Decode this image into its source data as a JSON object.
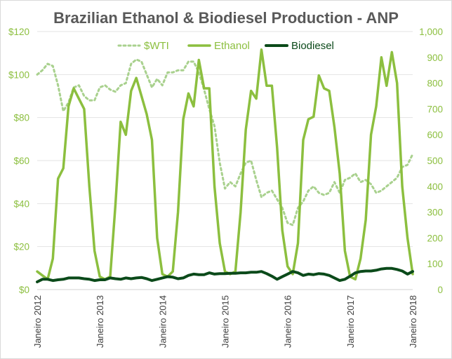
{
  "chart_data": {
    "type": "line",
    "title": "Brazilian Ethanol & Biodiesel Production - ANP",
    "colors": {
      "wti": "#a9d18e",
      "ethanol": "#8cbf3f",
      "biodiesel": "#0b4a1a",
      "axis_labels": "#8cbf3f",
      "title": "#595959"
    },
    "legend_position": "top",
    "grid": true,
    "y_left": {
      "min": 0,
      "max": 120,
      "ticks": [
        "$0",
        "$20",
        "$40",
        "$60",
        "$80",
        "$100",
        "$120"
      ],
      "tick_values": [
        0,
        20,
        40,
        60,
        80,
        100,
        120
      ]
    },
    "y_right": {
      "min": 0,
      "max": 1000,
      "ticks": [
        "0",
        "100",
        "200",
        "300",
        "400",
        "500",
        "600",
        "700",
        "800",
        "900",
        "1,000"
      ],
      "tick_values": [
        0,
        100,
        200,
        300,
        400,
        500,
        600,
        700,
        800,
        900,
        1000
      ]
    },
    "x_ticks": [
      "Janeiro 2012",
      "Janeiro 2013",
      "Janeiro 2014",
      "Janeiro 2015",
      "Janeiro 2016",
      "Janeiro 2017",
      "Janeiro 2018"
    ],
    "x_tick_months": [
      0,
      12,
      24,
      36,
      48,
      60,
      72
    ],
    "series": [
      {
        "name": "$WTI",
        "axis": "left",
        "style": "dotted",
        "values": [
          100,
          102,
          105,
          104,
          95,
          83,
          87,
          94,
          95,
          90,
          88,
          88,
          94,
          95,
          93,
          92,
          95,
          96,
          105,
          107,
          106,
          100,
          94,
          98,
          95,
          101,
          101,
          102,
          102,
          106,
          106,
          101,
          93,
          84,
          76,
          59,
          47,
          50,
          48,
          54,
          59,
          60,
          51,
          43,
          45,
          46,
          42,
          38,
          31,
          30,
          38,
          41,
          46,
          48,
          45,
          44,
          45,
          50,
          45,
          51,
          52,
          54,
          50,
          51,
          49,
          45,
          46,
          48,
          50,
          52,
          57,
          58,
          63
        ]
      },
      {
        "name": "Ethanol",
        "axis": "right",
        "style": "solid",
        "values": [
          70,
          55,
          40,
          120,
          430,
          470,
          710,
          780,
          740,
          700,
          400,
          150,
          50,
          40,
          50,
          330,
          650,
          600,
          770,
          820,
          750,
          680,
          580,
          200,
          60,
          50,
          70,
          300,
          660,
          760,
          710,
          890,
          780,
          780,
          400,
          180,
          70,
          60,
          70,
          300,
          620,
          770,
          740,
          930,
          790,
          790,
          550,
          230,
          90,
          60,
          180,
          580,
          660,
          670,
          830,
          780,
          770,
          630,
          450,
          150,
          50,
          40,
          120,
          270,
          600,
          710,
          900,
          790,
          920,
          800,
          400,
          200,
          60
        ]
      },
      {
        "name": "Biodiesel",
        "axis": "right",
        "style": "solid",
        "values": [
          30,
          40,
          40,
          35,
          38,
          40,
          45,
          45,
          45,
          42,
          40,
          35,
          38,
          38,
          45,
          42,
          40,
          45,
          42,
          45,
          47,
          42,
          35,
          40,
          45,
          50,
          48,
          42,
          45,
          55,
          60,
          58,
          58,
          65,
          60,
          62,
          62,
          63,
          63,
          65,
          65,
          67,
          67,
          70,
          62,
          52,
          40,
          50,
          60,
          70,
          65,
          55,
          60,
          58,
          62,
          60,
          55,
          45,
          35,
          40,
          52,
          65,
          70,
          72,
          72,
          75,
          80,
          82,
          82,
          78,
          72,
          60,
          70
        ]
      }
    ]
  }
}
